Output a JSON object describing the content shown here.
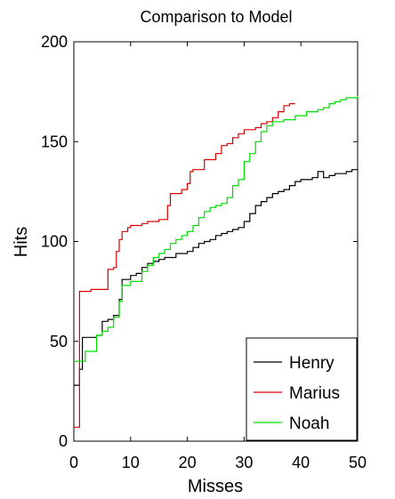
{
  "chart_data": {
    "type": "line",
    "step": true,
    "title": "Comparison to Model",
    "xlabel": "Misses",
    "ylabel": "Hits",
    "xlim": [
      0,
      50
    ],
    "ylim": [
      0,
      200
    ],
    "xticks": [
      0,
      10,
      20,
      30,
      40,
      50
    ],
    "yticks": [
      0,
      50,
      100,
      150,
      200
    ],
    "grid": false,
    "legend_position": "bottom-right",
    "series": [
      {
        "name": "Henry",
        "color": "#000000",
        "points": [
          [
            0,
            28
          ],
          [
            1,
            36
          ],
          [
            1.5,
            52
          ],
          [
            4,
            53
          ],
          [
            5,
            60
          ],
          [
            6,
            61
          ],
          [
            7,
            63
          ],
          [
            8,
            71
          ],
          [
            8.5,
            81
          ],
          [
            10,
            83
          ],
          [
            11,
            84
          ],
          [
            12,
            87
          ],
          [
            13,
            89
          ],
          [
            14,
            90
          ],
          [
            15,
            91
          ],
          [
            16,
            92
          ],
          [
            18,
            94
          ],
          [
            20,
            95
          ],
          [
            21,
            97
          ],
          [
            22,
            99
          ],
          [
            23,
            100
          ],
          [
            24,
            101
          ],
          [
            25,
            103
          ],
          [
            26,
            104
          ],
          [
            27,
            105
          ],
          [
            28,
            106
          ],
          [
            29,
            107
          ],
          [
            30,
            110
          ],
          [
            31,
            114
          ],
          [
            32,
            118
          ],
          [
            33,
            120
          ],
          [
            34,
            122
          ],
          [
            35,
            124
          ],
          [
            36,
            125
          ],
          [
            37,
            126
          ],
          [
            38,
            128
          ],
          [
            39,
            130
          ],
          [
            40,
            131
          ],
          [
            41,
            131
          ],
          [
            42,
            132
          ],
          [
            43,
            135
          ],
          [
            44,
            132
          ],
          [
            45,
            133
          ],
          [
            46,
            134
          ],
          [
            47,
            134
          ],
          [
            48,
            135
          ],
          [
            49,
            136
          ],
          [
            50,
            136
          ]
        ]
      },
      {
        "name": "Marius",
        "color": "#dd0000",
        "points": [
          [
            0,
            7
          ],
          [
            1,
            75
          ],
          [
            3,
            76
          ],
          [
            6,
            86
          ],
          [
            7,
            87
          ],
          [
            7.5,
            95
          ],
          [
            8,
            101
          ],
          [
            8.5,
            105
          ],
          [
            9.5,
            107
          ],
          [
            10,
            108
          ],
          [
            12,
            109
          ],
          [
            13,
            110
          ],
          [
            15,
            111
          ],
          [
            16.5,
            118
          ],
          [
            17,
            124
          ],
          [
            19,
            126
          ],
          [
            20,
            129
          ],
          [
            20.5,
            135
          ],
          [
            21,
            136
          ],
          [
            23,
            141
          ],
          [
            25,
            144
          ],
          [
            26,
            148
          ],
          [
            27,
            149
          ],
          [
            28,
            152
          ],
          [
            29,
            154
          ],
          [
            30,
            156
          ],
          [
            32,
            157
          ],
          [
            33,
            159
          ],
          [
            34,
            160
          ],
          [
            35,
            162
          ],
          [
            36,
            165
          ],
          [
            37,
            168
          ],
          [
            38,
            169
          ],
          [
            39,
            169
          ]
        ]
      },
      {
        "name": "Noah",
        "color": "#00dd00",
        "points": [
          [
            0,
            40
          ],
          [
            2,
            45
          ],
          [
            4,
            53
          ],
          [
            5,
            55
          ],
          [
            6,
            57
          ],
          [
            7,
            62
          ],
          [
            8,
            70
          ],
          [
            8.5,
            78
          ],
          [
            10,
            80
          ],
          [
            12,
            85
          ],
          [
            13,
            88
          ],
          [
            14,
            92
          ],
          [
            15,
            94
          ],
          [
            16,
            96
          ],
          [
            17,
            99
          ],
          [
            18,
            101
          ],
          [
            19,
            103
          ],
          [
            20,
            105
          ],
          [
            21,
            108
          ],
          [
            22,
            112
          ],
          [
            23,
            115
          ],
          [
            24,
            117
          ],
          [
            25,
            118
          ],
          [
            26,
            119
          ],
          [
            27,
            122
          ],
          [
            28,
            128
          ],
          [
            29,
            131
          ],
          [
            30,
            140
          ],
          [
            31,
            144
          ],
          [
            32,
            150
          ],
          [
            33,
            155
          ],
          [
            34,
            158
          ],
          [
            35,
            160
          ],
          [
            37,
            161
          ],
          [
            39,
            163
          ],
          [
            41,
            165
          ],
          [
            43,
            166
          ],
          [
            44,
            167
          ],
          [
            45,
            169
          ],
          [
            46,
            170
          ],
          [
            47,
            171
          ],
          [
            48,
            172
          ],
          [
            49,
            172
          ],
          [
            50,
            173
          ]
        ]
      }
    ]
  }
}
